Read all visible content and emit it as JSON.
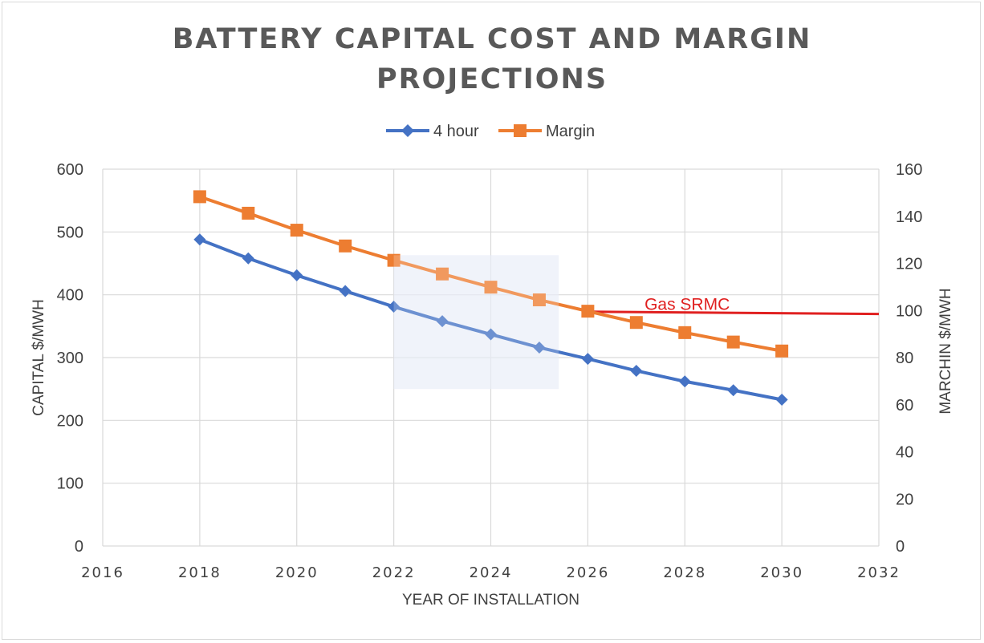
{
  "chart_data": {
    "type": "line",
    "title_lines": [
      "BATTERY CAPITAL COST AND MARGIN",
      "PROJECTIONS"
    ],
    "xlabel": "YEAR OF INSTALLATION",
    "ylabel_left": "CAPITAL $/MWH",
    "ylabel_right": "MARCHIN $/MWH",
    "xlim": [
      2016,
      2032
    ],
    "xticks": [
      "2016",
      "2018",
      "2020",
      "2022",
      "2024",
      "2026",
      "2028",
      "2030",
      "2032"
    ],
    "ylim_left": [
      0,
      600
    ],
    "yticks_left": [
      "0",
      "100",
      "200",
      "300",
      "400",
      "500",
      "600"
    ],
    "ylim_right": [
      0,
      160
    ],
    "yticks_right": [
      "0",
      "20",
      "40",
      "60",
      "80",
      "100",
      "120",
      "140",
      "160"
    ],
    "grid": true,
    "legend_position": "top-center",
    "series": [
      {
        "name": "4 hour",
        "axis": "left",
        "color": "#4472c4",
        "marker": "diamond",
        "x": [
          2018,
          2019,
          2020,
          2021,
          2022,
          2023,
          2024,
          2025,
          2026,
          2027,
          2028,
          2029,
          2030
        ],
        "values": [
          488,
          458,
          431,
          406,
          381,
          358,
          337,
          316,
          298,
          279,
          262,
          248,
          233
        ]
      },
      {
        "name": "Margin",
        "axis": "right",
        "color": "#ed7d31",
        "marker": "square",
        "x": [
          2018,
          2019,
          2020,
          2021,
          2022,
          2023,
          2024,
          2025,
          2026,
          2027,
          2028,
          2029,
          2030
        ],
        "values": [
          148.3,
          141.3,
          134.1,
          127.4,
          121.3,
          115.5,
          109.9,
          104.5,
          99.7,
          94.9,
          90.6,
          86.6,
          82.8
        ]
      }
    ],
    "annotation": {
      "text": "Gas SRMC",
      "color": "#e02020",
      "axis": "right",
      "x": [
        2026,
        2032
      ],
      "values": [
        99.5,
        98.5
      ]
    },
    "highlight": {
      "x": [
        2022,
        2025.4
      ],
      "y_left": [
        250,
        463
      ],
      "color": "#dfe6f5"
    }
  }
}
